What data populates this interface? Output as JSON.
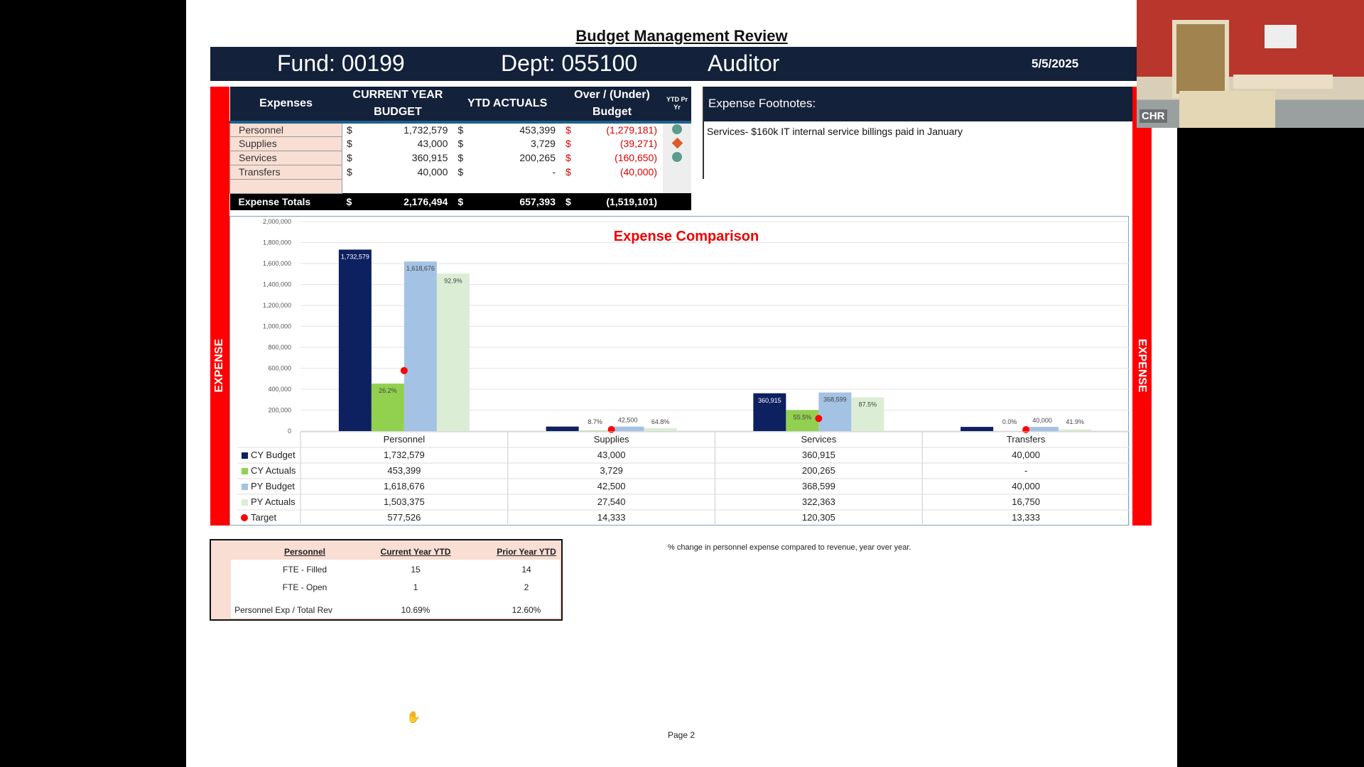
{
  "title": "Budget Management Review",
  "header": {
    "fund": "Fund: 00199",
    "dept": "Dept: 055100",
    "name": "Auditor",
    "date": "5/5/2025"
  },
  "side_label": "EXPENSE",
  "expenses": {
    "headers": [
      "Expenses",
      "CURRENT YEAR BUDGET",
      "YTD ACTUALS",
      "Over / (Under) Budget",
      "YTD Pr Yr"
    ],
    "rows": [
      {
        "cat": "Personnel",
        "budget": "1,732,579",
        "actual": "453,399",
        "over": "(1,279,181)",
        "icon": "circle"
      },
      {
        "cat": "Supplies",
        "budget": "43,000",
        "actual": "3,729",
        "over": "(39,271)",
        "icon": "diamond"
      },
      {
        "cat": "Services",
        "budget": "360,915",
        "actual": "200,265",
        "over": "(160,650)",
        "icon": "circle"
      },
      {
        "cat": "Transfers",
        "budget": "40,000",
        "actual": "-",
        "over": "(40,000)",
        "icon": ""
      }
    ],
    "totals": {
      "label": "Expense Totals",
      "budget": "2,176,494",
      "actual": "657,393",
      "over": "(1,519,101)"
    },
    "currency": "$"
  },
  "footnotes": {
    "title": "Expense Footnotes:",
    "text": "Services- $160k IT internal service billings paid in January"
  },
  "chart_data": {
    "type": "bar",
    "title": "Expense Comparison",
    "categories": [
      "Personnel",
      "Supplies",
      "Services",
      "Transfers"
    ],
    "ylim": [
      0,
      2000000
    ],
    "yticks": [
      "0",
      "200,000",
      "400,000",
      "600,000",
      "800,000",
      "1,000,000",
      "1,200,000",
      "1,400,000",
      "1,600,000",
      "1,800,000",
      "2,000,000"
    ],
    "series": [
      {
        "name": "CY Budget",
        "color": "#0d2060",
        "values": [
          1732579,
          43000,
          360915,
          40000
        ],
        "display": [
          "1,732,579",
          "43,000",
          "360,915",
          "40,000"
        ],
        "labels": [
          "1,732,579",
          "",
          "360,915",
          ""
        ]
      },
      {
        "name": "CY Actuals",
        "color": "#92d050",
        "values": [
          453399,
          3729,
          200265,
          0
        ],
        "display": [
          "453,399",
          "3,729",
          "200,265",
          "-"
        ],
        "labels": [
          "26.2%",
          "8.7%",
          "55.5%",
          "0.0%"
        ]
      },
      {
        "name": "PY Budget",
        "color": "#a4c2e4",
        "values": [
          1618676,
          42500,
          368599,
          40000
        ],
        "display": [
          "1,618,676",
          "42,500",
          "368,599",
          "40,000"
        ],
        "labels": [
          "1,618,676",
          "42,500",
          "368,599",
          "40,000"
        ]
      },
      {
        "name": "PY Actuals",
        "color": "#dbedd4",
        "values": [
          1503375,
          27540,
          322363,
          16750
        ],
        "display": [
          "1,503,375",
          "27,540",
          "322,363",
          "16,750"
        ],
        "labels": [
          "92.9%",
          "64.8%",
          "87.5%",
          "41.9%"
        ]
      },
      {
        "name": "Target",
        "color": "#ff0000",
        "marker": "dot",
        "values": [
          577526,
          14333,
          120305,
          13333
        ],
        "display": [
          "577,526",
          "14,333",
          "120,305",
          "13,333"
        ]
      }
    ]
  },
  "personnel": {
    "headers": [
      "Personnel",
      "Current Year YTD",
      "Prior Year YTD"
    ],
    "rows": [
      [
        "FTE - Filled",
        "15",
        "14"
      ],
      [
        "FTE - Open",
        "1",
        "2"
      ],
      [
        "Personnel Exp / Total Rev",
        "10.69%",
        "12.60%"
      ]
    ]
  },
  "note": "% change in personnel expense compared to revenue, year over year.",
  "page": "Page 2",
  "webcam": {
    "label": "CHR"
  }
}
